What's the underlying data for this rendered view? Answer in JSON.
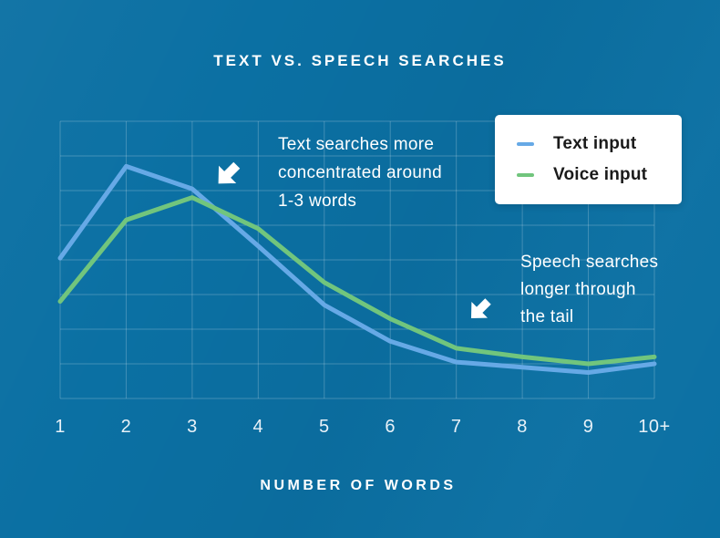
{
  "page": {
    "title": "TEXT VS. SPEECH SEARCHES",
    "xlabel": "NUMBER OF WORDS"
  },
  "legend": {
    "items": [
      {
        "label": "Text input",
        "color": "#66A9E6"
      },
      {
        "label": "Voice input",
        "color": "#71C57D"
      }
    ]
  },
  "annotations": [
    {
      "icon": "down-left-arrow",
      "lines": [
        "Text searches more",
        "concentrated around",
        "1-3 words"
      ]
    },
    {
      "icon": "down-left-arrow",
      "lines": [
        "Speech searches",
        "longer through",
        "the tail"
      ]
    }
  ],
  "colors": {
    "background": "#0B70A3",
    "grid": "rgba(255,255,255,0.22)",
    "title_text": "#FFFFFF",
    "tick_text": "#E7F1F8",
    "annotation_text": "#FFFFFF",
    "legend_background": "#FFFFFF",
    "legend_text": "#1A1A1A",
    "arrow": "#FFFFFF",
    "text_input_line": "#66A9E6",
    "voice_input_line": "#71C57D"
  },
  "chart_data": {
    "type": "line",
    "title": "TEXT VS. SPEECH SEARCHES",
    "xlabel": "NUMBER OF WORDS",
    "ylabel": "",
    "categories": [
      "1",
      "2",
      "3",
      "4",
      "5",
      "6",
      "7",
      "8",
      "9",
      "10+"
    ],
    "series": [
      {
        "name": "Text input",
        "color": "#66A9E6",
        "values": [
          4.05,
          6.7,
          6.05,
          4.4,
          2.7,
          1.65,
          1.05,
          0.9,
          0.75,
          1.0
        ]
      },
      {
        "name": "Voice input",
        "color": "#71C57D",
        "values": [
          2.8,
          5.15,
          5.8,
          4.9,
          3.35,
          2.3,
          1.45,
          1.2,
          1.0,
          1.2
        ]
      }
    ],
    "ylim": [
      0,
      8
    ],
    "y_axis_labels_shown": false,
    "grid": true,
    "legend_position": "top-right",
    "units": "relative share (gridline units; no y-axis labels shown in figure)",
    "notes": [
      "Text input peaks at 2 words then falls below Voice input after 3 words",
      "Voice input peaks at 3 words and stays higher through the tail",
      "Both series tick up slightly at 10+"
    ]
  }
}
